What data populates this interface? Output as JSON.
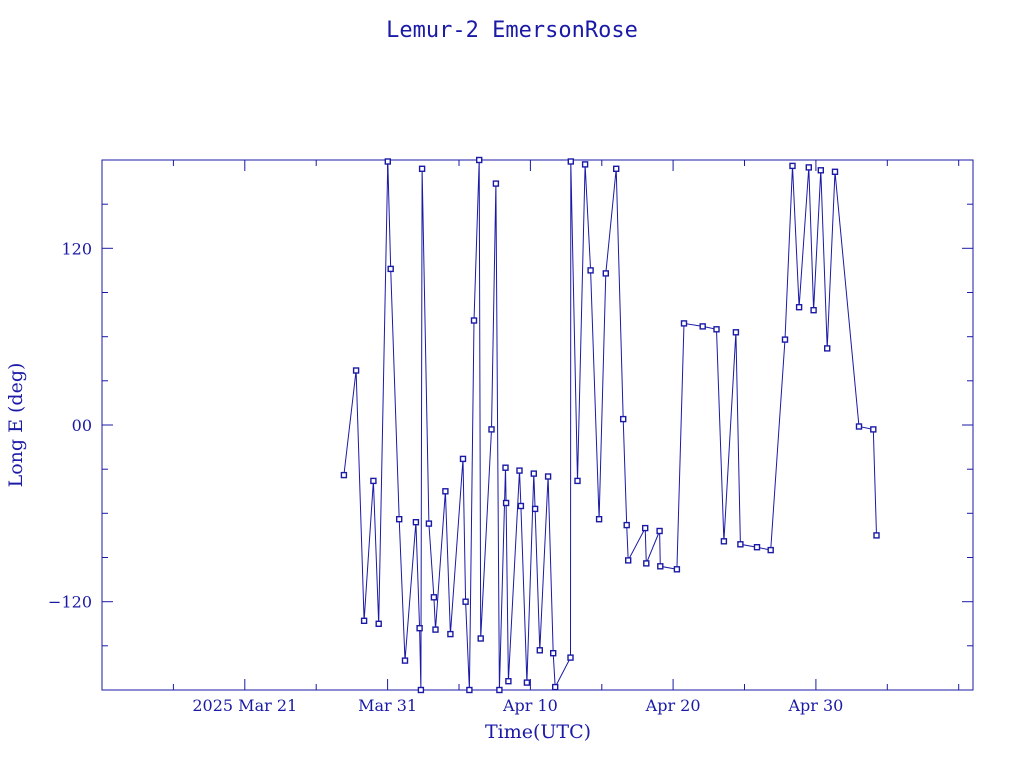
{
  "chart_data": {
    "type": "line",
    "title": "Lemur-2 EmersonRose",
    "xlabel": "Time(UTC)",
    "ylabel": "Long E (deg)",
    "xlim": [
      "2025-03-11",
      "2025-05-11"
    ],
    "ylim": [
      -180,
      180
    ],
    "x_ticks": [
      {
        "date": "2025-03-21",
        "label": "2025 Mar 21"
      },
      {
        "date": "2025-03-31",
        "label": "Mar 31"
      },
      {
        "date": "2025-04-10",
        "label": "Apr 10"
      },
      {
        "date": "2025-04-20",
        "label": "Apr 20"
      },
      {
        "date": "2025-04-30",
        "label": "Apr 30"
      }
    ],
    "y_ticks": [
      {
        "value": 120,
        "label": "120"
      },
      {
        "value": 0,
        "label": "00"
      },
      {
        "value": -120,
        "label": "−120"
      }
    ],
    "grid": false,
    "color": "#1a1aa6",
    "series": [
      {
        "points": [
          {
            "x": "2025-03-27 22:36",
            "y": -34
          },
          {
            "x": "2025-03-28 19:07",
            "y": 37
          },
          {
            "x": "2025-03-29 08:36",
            "y": -133
          },
          {
            "x": "2025-03-30 00:07",
            "y": -38
          },
          {
            "x": "2025-03-30 09:07",
            "y": -135
          },
          {
            "x": "2025-03-31 00:21",
            "y": 179
          },
          {
            "x": "2025-03-31 05:19",
            "y": 106
          },
          {
            "x": "2025-03-31 19:30",
            "y": -64
          },
          {
            "x": "2025-04-01 05:19",
            "y": -160
          },
          {
            "x": "2025-04-01 23:39",
            "y": -66
          },
          {
            "x": "2025-04-02 05:48",
            "y": -138
          },
          {
            "x": "2025-04-02 08:01",
            "y": -180
          },
          {
            "x": "2025-04-02 10:01",
            "y": 174
          },
          {
            "x": "2025-04-02 21:28",
            "y": -67
          },
          {
            "x": "2025-04-03 05:48",
            "y": -117
          },
          {
            "x": "2025-04-03 08:30",
            "y": -139
          },
          {
            "x": "2025-04-04 01:12",
            "y": -45
          },
          {
            "x": "2025-04-04 09:36",
            "y": -142
          },
          {
            "x": "2025-04-05 06:43",
            "y": -23
          },
          {
            "x": "2025-04-05 11:06",
            "y": -120
          },
          {
            "x": "2025-04-05 17:34",
            "y": -180
          },
          {
            "x": "2025-04-06 01:12",
            "y": 71
          },
          {
            "x": "2025-04-06 10:04",
            "y": 180
          },
          {
            "x": "2025-04-06 12:36",
            "y": -145
          },
          {
            "x": "2025-04-07 06:43",
            "y": -3
          },
          {
            "x": "2025-04-07 14:04",
            "y": 164
          },
          {
            "x": "2025-04-07 19:58",
            "y": -180
          },
          {
            "x": "2025-04-08 06:14",
            "y": -29
          },
          {
            "x": "2025-04-08 07:12",
            "y": -53
          },
          {
            "x": "2025-04-08 11:06",
            "y": -174
          },
          {
            "x": "2025-04-09 05:48",
            "y": -31
          },
          {
            "x": "2025-04-09 08:01",
            "y": -55
          },
          {
            "x": "2025-04-09 18:14",
            "y": -175
          },
          {
            "x": "2025-04-10 05:48",
            "y": -33
          },
          {
            "x": "2025-04-10 08:01",
            "y": -57
          },
          {
            "x": "2025-04-10 15:50",
            "y": -153
          },
          {
            "x": "2025-04-11 05:48",
            "y": -35
          },
          {
            "x": "2025-04-11 14:21",
            "y": -155
          },
          {
            "x": "2025-04-11 17:48",
            "y": -178
          },
          {
            "x": "2025-04-12 19:30",
            "y": -158
          },
          {
            "x": "2025-04-12 20:00",
            "y": 179
          },
          {
            "x": "2025-04-13 07:12",
            "y": -38
          },
          {
            "x": "2025-04-13 19:58",
            "y": 177
          },
          {
            "x": "2025-04-14 05:19",
            "y": 105
          },
          {
            "x": "2025-04-14 19:30",
            "y": -64
          },
          {
            "x": "2025-04-15 06:43",
            "y": 103
          },
          {
            "x": "2025-04-16 00:21",
            "y": 174
          },
          {
            "x": "2025-04-16 12:00",
            "y": 4
          },
          {
            "x": "2025-04-16 17:57",
            "y": -68
          },
          {
            "x": "2025-04-16 20:24",
            "y": -92
          },
          {
            "x": "2025-04-18 00:57",
            "y": -70
          },
          {
            "x": "2025-04-18 02:52",
            "y": -94
          },
          {
            "x": "2025-04-19 01:12",
            "y": -72
          },
          {
            "x": "2025-04-19 02:24",
            "y": -96
          },
          {
            "x": "2025-04-20 06:14",
            "y": -98
          },
          {
            "x": "2025-04-20 18:14",
            "y": 69
          },
          {
            "x": "2025-04-22 01:41",
            "y": 67
          },
          {
            "x": "2025-04-23 00:50",
            "y": 65
          },
          {
            "x": "2025-04-23 13:18",
            "y": -79
          },
          {
            "x": "2025-04-24 09:28",
            "y": 63
          },
          {
            "x": "2025-04-24 17:00",
            "y": -81
          },
          {
            "x": "2025-04-25 21:00",
            "y": -83
          },
          {
            "x": "2025-04-26 20:00",
            "y": -85
          },
          {
            "x": "2025-04-27 20:00",
            "y": 58
          },
          {
            "x": "2025-04-28 08:36",
            "y": 176
          },
          {
            "x": "2025-04-28 19:38",
            "y": 80
          },
          {
            "x": "2025-04-29 12:00",
            "y": 175
          },
          {
            "x": "2025-04-29 20:07",
            "y": 78
          },
          {
            "x": "2025-04-30 08:07",
            "y": 173
          },
          {
            "x": "2025-04-30 19:00",
            "y": 52
          },
          {
            "x": "2025-05-01 08:00",
            "y": 172
          },
          {
            "x": "2025-05-03 00:21",
            "y": -1
          },
          {
            "x": "2025-05-04 00:21",
            "y": -3
          },
          {
            "x": "2025-05-04 05:48",
            "y": -75
          }
        ]
      }
    ]
  }
}
